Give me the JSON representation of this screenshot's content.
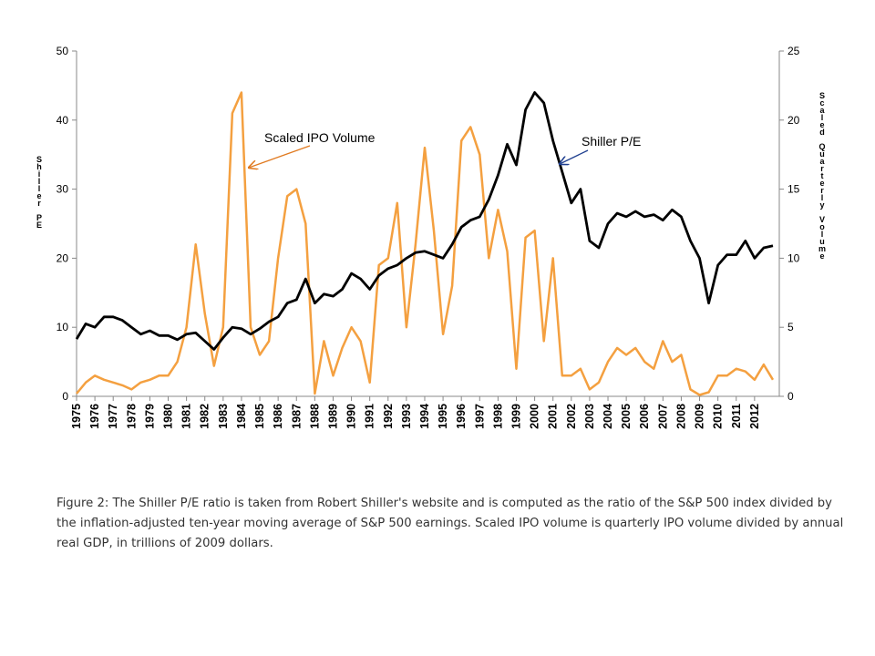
{
  "chart_data": {
    "type": "line",
    "axis_label_left": "Shiller PE",
    "axis_label_right": "Scaled Quarterly Volume",
    "annotations": [
      "Scaled IPO Volume",
      "Shiller P/E"
    ],
    "caption": "Figure 2: The Shiller P/E ratio is taken from Robert Shiller's website and is computed as the ratio of the S&P 500 index divided by the inflation-adjusted ten-year moving average of S&P 500 earnings. Scaled IPO volume is quarterly IPO volume divided by annual real GDP, in trillions of 2009 dollars.",
    "x": [
      1975,
      1975.5,
      1976,
      1976.5,
      1977,
      1977.5,
      1978,
      1978.5,
      1979,
      1979.5,
      1980,
      1980.5,
      1981,
      1981.5,
      1982,
      1982.5,
      1983,
      1983.5,
      1984,
      1984.5,
      1985,
      1985.5,
      1986,
      1986.5,
      1987,
      1987.5,
      1988,
      1988.5,
      1989,
      1989.5,
      1990,
      1990.5,
      1991,
      1991.5,
      1992,
      1992.5,
      1993,
      1993.5,
      1994,
      1994.5,
      1995,
      1995.5,
      1996,
      1996.5,
      1997,
      1997.5,
      1998,
      1998.5,
      1999,
      1999.5,
      2000,
      2000.5,
      2001,
      2001.5,
      2002,
      2002.5,
      2003,
      2003.5,
      2004,
      2004.5,
      2005,
      2005.5,
      2006,
      2006.5,
      2007,
      2007.5,
      2008,
      2008.5,
      2009,
      2009.5,
      2010,
      2010.5,
      2011,
      2011.5,
      2012,
      2012.5,
      2013
    ],
    "xlim": [
      1975,
      2013.35
    ],
    "xticks": [
      1975,
      1976,
      1977,
      1978,
      1979,
      1980,
      1981,
      1982,
      1983,
      1984,
      1985,
      1986,
      1987,
      1988,
      1989,
      1990,
      1991,
      1992,
      1993,
      1994,
      1995,
      1996,
      1997,
      1998,
      1999,
      2000,
      2001,
      2002,
      2003,
      2004,
      2005,
      2006,
      2007,
      2008,
      2009,
      2010,
      2011,
      2012
    ],
    "ylim": [
      0,
      50
    ],
    "yticks": [
      0,
      10,
      20,
      30,
      40,
      50
    ],
    "y2lim": [
      0,
      25
    ],
    "y2ticks": [
      0,
      5,
      10,
      15,
      20,
      25
    ],
    "series": [
      {
        "name": "Shiller P/E",
        "color": "#000000",
        "values": [
          8.3,
          10.5,
          10,
          11.5,
          11.5,
          11,
          10,
          9,
          9.5,
          8.8,
          8.8,
          8.2,
          9,
          9.2,
          8,
          6.8,
          8.5,
          10,
          9.8,
          9,
          9.8,
          10.8,
          11.5,
          13.5,
          14,
          17,
          13.5,
          14.8,
          14.5,
          15.5,
          17.8,
          17,
          15.5,
          17.5,
          18.5,
          19,
          20,
          20.8,
          21,
          20.5,
          20,
          22,
          24.5,
          25.5,
          26,
          28.5,
          32,
          36.5,
          33.5,
          41.5,
          44,
          42.5,
          37,
          32.5,
          28,
          30,
          22.5,
          21.5,
          25,
          26.5,
          26,
          26.8,
          26,
          26.3,
          25.5,
          27,
          26,
          22.5,
          20,
          13.5,
          19,
          20.5,
          20.5,
          22.5,
          20,
          21.5,
          21.8
        ]
      },
      {
        "name": "Scaled IPO Volume",
        "color": "#f4a040",
        "axis": "y2",
        "values": [
          0.2,
          1,
          1.5,
          1.2,
          1,
          0.8,
          0.5,
          1,
          1.2,
          1.5,
          1.5,
          2.5,
          5,
          11,
          6,
          2.2,
          5,
          20.5,
          22,
          5,
          3,
          4,
          10,
          14.5,
          15,
          12.5,
          0.2,
          4,
          1.5,
          3.5,
          5,
          4,
          1,
          9.5,
          10,
          14,
          5,
          11,
          18,
          12,
          4.5,
          8,
          18.5,
          19.5,
          17.5,
          10,
          13.5,
          10.5,
          2,
          11.5,
          12,
          4,
          10,
          1.5,
          1.5,
          2,
          0.5,
          1,
          2.5,
          3.5,
          3,
          3.5,
          2.5,
          2,
          4,
          2.5,
          3,
          0.5,
          0.1,
          0.3,
          1.5,
          1.5,
          2,
          1.8,
          1.2,
          2.3,
          1.2
        ]
      }
    ]
  }
}
